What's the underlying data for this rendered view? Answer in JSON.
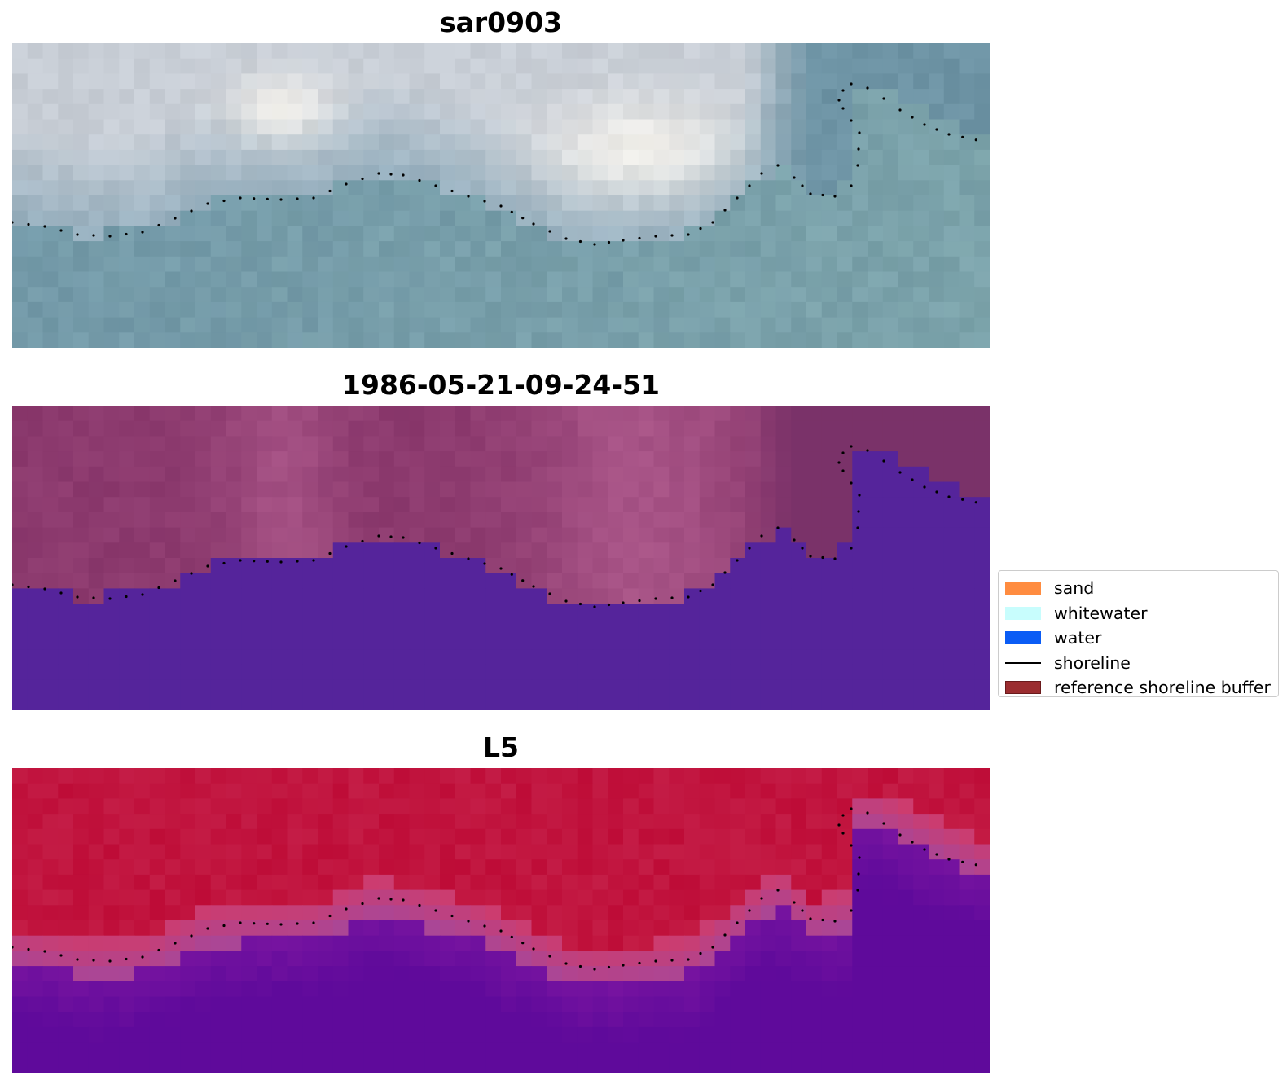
{
  "panels": [
    {
      "title": "sar0903",
      "style": "rgb"
    },
    {
      "title": "1986-05-21-09-24-51",
      "style": "classified"
    },
    {
      "title": "L5",
      "style": "probability"
    }
  ],
  "legend": {
    "items": [
      {
        "label": "sand",
        "color": "#ff8c40",
        "kind": "patch"
      },
      {
        "label": "whitewater",
        "color": "#c8fdfd",
        "kind": "patch"
      },
      {
        "label": "water",
        "color": "#0a5cf5",
        "kind": "patch"
      },
      {
        "label": "shoreline",
        "color": "#000000",
        "kind": "line"
      },
      {
        "label": "reference shoreline buffer",
        "color": "#9b2d30",
        "kind": "patch"
      }
    ]
  },
  "colors": {
    "water_class": "#55249b",
    "land_tint": "#a0507f",
    "probability_land": "#c0123f",
    "probability_water": "#5f0a9a",
    "shoreline_dots": "#000000"
  }
}
